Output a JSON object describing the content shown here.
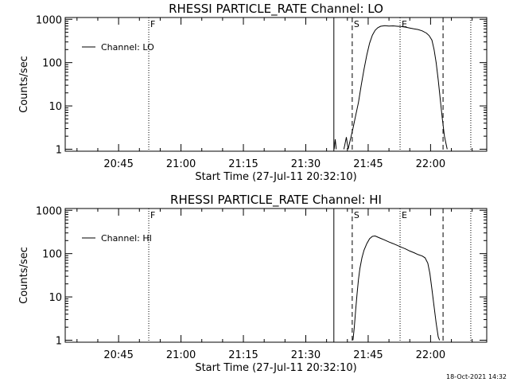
{
  "chart_data": [
    {
      "type": "line",
      "title": "RHESSI PARTICLE_RATE Channel: LO",
      "xlabel": "Start Time (27-Jul-11 20:32:10)",
      "ylabel": "Counts/sec",
      "yscale": "log",
      "ylim": [
        0.9,
        1100
      ],
      "xlim": [
        "20:32:10",
        "22:13:30"
      ],
      "x_ticks": [
        "20:45",
        "21:00",
        "21:15",
        "21:30",
        "21:45",
        "22:00"
      ],
      "y_ticks": [
        "1",
        "10",
        "100",
        "1000"
      ],
      "legend": {
        "position": "top-left",
        "label": "Channel: LO"
      },
      "markers": [
        {
          "label": "F",
          "time": "20:52:15",
          "style": "dotted"
        },
        {
          "label": "",
          "time": "21:36:45",
          "style": "solid"
        },
        {
          "label": "S",
          "time": "21:41:10",
          "style": "dashed"
        },
        {
          "label": "E",
          "time": "21:52:40",
          "style": "dotted"
        },
        {
          "label": "",
          "time": "22:03:00",
          "style": "dashed"
        },
        {
          "label": "",
          "time": "22:09:40",
          "style": "dotted"
        }
      ],
      "series": [
        {
          "name": "Channel: LO",
          "segments": [
            [
              [
                "21:36:50",
                1
              ],
              [
                "21:37:05",
                1.7
              ],
              [
                "21:37:20",
                1
              ]
            ],
            [
              [
                "21:39:10",
                1
              ],
              [
                "21:39:25",
                1.3
              ],
              [
                "21:39:45",
                1.9
              ],
              [
                "21:40:10",
                1
              ]
            ],
            [
              [
                "21:40:10",
                1
              ],
              [
                "21:40:40",
                1.6
              ],
              [
                "21:41:20",
                3
              ],
              [
                "21:42:00",
                6
              ],
              [
                "21:42:40",
                12
              ],
              [
                "21:43:20",
                30
              ],
              [
                "21:44:00",
                70
              ],
              [
                "21:44:40",
                150
              ],
              [
                "21:45:20",
                280
              ],
              [
                "21:46:00",
                430
              ],
              [
                "21:46:40",
                560
              ],
              [
                "21:47:20",
                640
              ],
              [
                "21:48:00",
                690
              ],
              [
                "21:49:00",
                715
              ],
              [
                "21:50:00",
                700
              ],
              [
                "21:51:00",
                705
              ],
              [
                "21:52:00",
                690
              ],
              [
                "21:53:00",
                680
              ],
              [
                "21:54:00",
                660
              ],
              [
                "21:55:00",
                630
              ],
              [
                "21:56:00",
                600
              ],
              [
                "21:57:00",
                580
              ],
              [
                "21:58:00",
                540
              ],
              [
                "21:59:00",
                480
              ],
              [
                "21:59:40",
                420
              ],
              [
                "22:00:20",
                330
              ],
              [
                "22:00:50",
                200
              ],
              [
                "22:01:20",
                100
              ],
              [
                "22:01:50",
                40
              ],
              [
                "22:02:20",
                14
              ],
              [
                "22:02:50",
                5
              ],
              [
                "22:03:20",
                2
              ],
              [
                "22:03:40",
                1.4
              ],
              [
                "22:04:00",
                1
              ]
            ]
          ]
        }
      ]
    },
    {
      "type": "line",
      "title": "RHESSI PARTICLE_RATE Channel: HI",
      "xlabel": "Start Time (27-Jul-11 20:32:10)",
      "ylabel": "Counts/sec",
      "yscale": "log",
      "ylim": [
        0.9,
        1100
      ],
      "xlim": [
        "20:32:10",
        "22:13:30"
      ],
      "x_ticks": [
        "20:45",
        "21:00",
        "21:15",
        "21:30",
        "21:45",
        "22:00"
      ],
      "y_ticks": [
        "1",
        "10",
        "100",
        "1000"
      ],
      "legend": {
        "position": "top-left",
        "label": "Channel: HI"
      },
      "markers": [
        {
          "label": "F",
          "time": "20:52:15",
          "style": "dotted"
        },
        {
          "label": "",
          "time": "21:36:45",
          "style": "solid"
        },
        {
          "label": "S",
          "time": "21:41:10",
          "style": "dashed"
        },
        {
          "label": "E",
          "time": "21:52:40",
          "style": "dotted"
        },
        {
          "label": "",
          "time": "22:03:00",
          "style": "dashed"
        },
        {
          "label": "",
          "time": "22:09:40",
          "style": "dotted"
        }
      ],
      "series": [
        {
          "name": "Channel: HI",
          "segments": [
            [
              [
                "21:41:20",
                1
              ],
              [
                "21:41:40",
                2
              ],
              [
                "21:42:00",
                5
              ],
              [
                "21:42:20",
                12
              ],
              [
                "21:42:40",
                25
              ],
              [
                "21:43:00",
                45
              ],
              [
                "21:43:30",
                80
              ],
              [
                "21:44:00",
                120
              ],
              [
                "21:44:40",
                170
              ],
              [
                "21:45:20",
                220
              ],
              [
                "21:46:00",
                250
              ],
              [
                "21:46:40",
                255
              ],
              [
                "21:47:20",
                240
              ],
              [
                "21:48:00",
                225
              ],
              [
                "21:49:00",
                205
              ],
              [
                "21:50:00",
                185
              ],
              [
                "21:51:00",
                170
              ],
              [
                "21:52:00",
                155
              ],
              [
                "21:53:00",
                140
              ],
              [
                "21:54:00",
                128
              ],
              [
                "21:55:00",
                115
              ],
              [
                "21:56:00",
                105
              ],
              [
                "21:57:00",
                95
              ],
              [
                "21:58:00",
                88
              ],
              [
                "21:58:40",
                80
              ],
              [
                "21:59:20",
                60
              ],
              [
                "21:59:50",
                35
              ],
              [
                "22:00:20",
                15
              ],
              [
                "22:00:50",
                6
              ],
              [
                "22:01:20",
                2.5
              ],
              [
                "22:01:50",
                1.2
              ],
              [
                "22:02:10",
                1
              ]
            ]
          ]
        }
      ]
    }
  ],
  "footer": {
    "timestamp": "18-Oct-2021 14:32"
  }
}
